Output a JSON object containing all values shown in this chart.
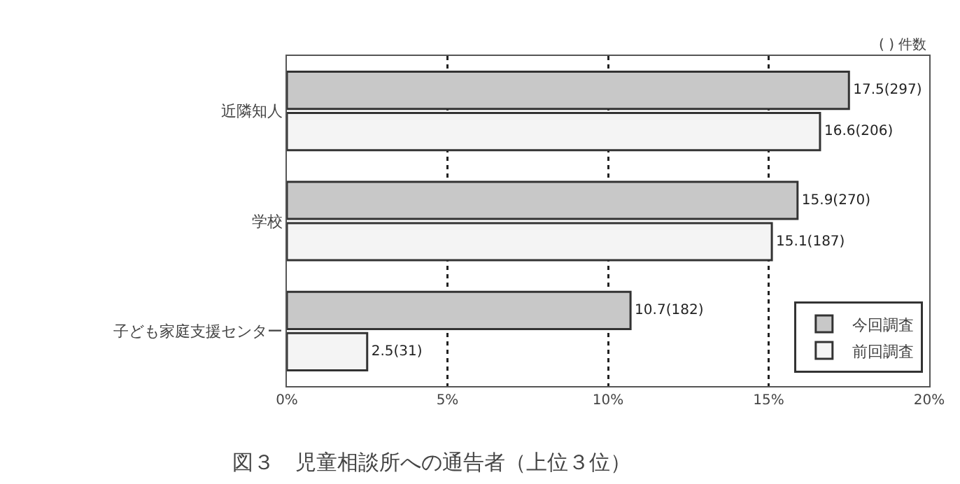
{
  "chart_data": {
    "type": "bar",
    "orientation": "horizontal",
    "title": "図３　児童相談所への通告者（上位３位）",
    "annotations": [
      "( ) 件数"
    ],
    "categories": [
      "近隣知人",
      "学校",
      "子ども家庭支援センター"
    ],
    "series": [
      {
        "name": "今回調査",
        "color": "#c8c8c8",
        "values": [
          17.5,
          15.9,
          10.7
        ],
        "value_labels": [
          "17.5(297)",
          "15.9(270)",
          "10.7(182)"
        ]
      },
      {
        "name": "前回調査",
        "color": "#f4f4f4",
        "values": [
          16.6,
          15.1,
          2.5
        ],
        "value_labels": [
          "16.6(206)",
          "15.1(187)",
          "2.5(31)"
        ]
      }
    ],
    "xlim": [
      0,
      20
    ],
    "xticks": [
      {
        "value": 0,
        "label": "0%"
      },
      {
        "value": 5,
        "label": "5%"
      },
      {
        "value": 10,
        "label": "10%"
      },
      {
        "value": 15,
        "label": "15%"
      },
      {
        "value": 20,
        "label": "20%"
      }
    ],
    "grid": "x",
    "legend": "bottom right"
  }
}
